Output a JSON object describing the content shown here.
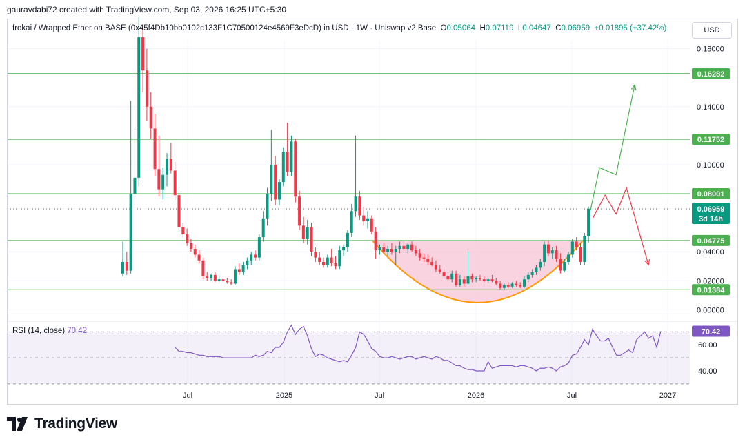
{
  "header": {
    "creator_line": "gauravdabi72 created with TradingView.com, Sep 03, 2026 16:25 UTC+5:30"
  },
  "legend": {
    "symbol_text": "frokai / Wrapped Ether on BASE (0x45f4Db10bb0102c133F1C70500124e4569F3eDcD) in USD · 1W · Uniswap v2 Base",
    "open_label": "O",
    "open": "0.05064",
    "high_label": "H",
    "high": "0.07119",
    "low_label": "L",
    "low": "0.04647",
    "close_label": "C",
    "close": "0.06959",
    "change": "+0.01895 (+37.42%)"
  },
  "currency_button": "USD",
  "rsi_panel": {
    "label": "RSI (14, close)",
    "value": "70.42"
  },
  "colors": {
    "up": "#089981",
    "down": "#f23645",
    "level_line": "#4caf50",
    "rsi_line": "#7e57c2",
    "cup_fill": "#f8bbd0",
    "cup_curve": "#ff9800",
    "up_arrow": "#4caf50",
    "down_arrow": "#f23645"
  },
  "chart_data": [
    {
      "type": "candlestick",
      "ylim": [
        -0.006,
        0.186
      ],
      "y_ticks": [
        0.0,
        0.02,
        0.04,
        0.1,
        0.14,
        0.18
      ],
      "y_tick_labels": [
        "0.00000",
        "0.02000",
        "0.04000",
        "0.10000",
        "0.14000",
        "0.18000"
      ],
      "x_ticks": [
        "Jul",
        "2025",
        "Jul",
        "2026",
        "Jul",
        "2027"
      ],
      "horizontal_levels": [
        {
          "value": 0.16282,
          "label": "0.16282"
        },
        {
          "value": 0.11752,
          "label": "0.11752"
        },
        {
          "value": 0.08001,
          "label": "0.08001"
        },
        {
          "value": 0.04775,
          "label": "0.04775"
        },
        {
          "value": 0.01384,
          "label": "0.01384"
        }
      ],
      "current_price": {
        "value": 0.06959,
        "label": "0.06959",
        "countdown": "3d 14h"
      },
      "candles": [
        {
          "o": 0.025,
          "h": 0.047,
          "l": 0.023,
          "c": 0.033
        },
        {
          "o": 0.033,
          "h": 0.04,
          "l": 0.024,
          "c": 0.027
        },
        {
          "o": 0.027,
          "h": 0.144,
          "l": 0.025,
          "c": 0.08
        },
        {
          "o": 0.08,
          "h": 0.125,
          "l": 0.07,
          "c": 0.091
        },
        {
          "o": 0.091,
          "h": 0.202,
          "l": 0.085,
          "c": 0.188
        },
        {
          "o": 0.188,
          "h": 0.195,
          "l": 0.15,
          "c": 0.165
        },
        {
          "o": 0.165,
          "h": 0.18,
          "l": 0.13,
          "c": 0.14
        },
        {
          "o": 0.14,
          "h": 0.15,
          "l": 0.118,
          "c": 0.125
        },
        {
          "o": 0.125,
          "h": 0.135,
          "l": 0.092,
          "c": 0.097
        },
        {
          "o": 0.097,
          "h": 0.12,
          "l": 0.078,
          "c": 0.083
        },
        {
          "o": 0.083,
          "h": 0.098,
          "l": 0.076,
          "c": 0.093
        },
        {
          "o": 0.093,
          "h": 0.108,
          "l": 0.085,
          "c": 0.104
        },
        {
          "o": 0.104,
          "h": 0.115,
          "l": 0.094,
          "c": 0.096
        },
        {
          "o": 0.096,
          "h": 0.102,
          "l": 0.076,
          "c": 0.079
        },
        {
          "o": 0.079,
          "h": 0.082,
          "l": 0.054,
          "c": 0.057
        },
        {
          "o": 0.057,
          "h": 0.06,
          "l": 0.05,
          "c": 0.052
        },
        {
          "o": 0.052,
          "h": 0.056,
          "l": 0.044,
          "c": 0.046
        },
        {
          "o": 0.046,
          "h": 0.049,
          "l": 0.04,
          "c": 0.042
        },
        {
          "o": 0.042,
          "h": 0.045,
          "l": 0.036,
          "c": 0.038
        },
        {
          "o": 0.038,
          "h": 0.041,
          "l": 0.032,
          "c": 0.034
        },
        {
          "o": 0.034,
          "h": 0.036,
          "l": 0.021,
          "c": 0.023
        },
        {
          "o": 0.023,
          "h": 0.026,
          "l": 0.02,
          "c": 0.022
        },
        {
          "o": 0.022,
          "h": 0.025,
          "l": 0.02,
          "c": 0.024
        },
        {
          "o": 0.024,
          "h": 0.026,
          "l": 0.019,
          "c": 0.02
        },
        {
          "o": 0.02,
          "h": 0.023,
          "l": 0.019,
          "c": 0.021
        },
        {
          "o": 0.021,
          "h": 0.023,
          "l": 0.019,
          "c": 0.02
        },
        {
          "o": 0.02,
          "h": 0.022,
          "l": 0.018,
          "c": 0.019
        },
        {
          "o": 0.019,
          "h": 0.021,
          "l": 0.017,
          "c": 0.018
        },
        {
          "o": 0.018,
          "h": 0.03,
          "l": 0.017,
          "c": 0.028
        },
        {
          "o": 0.028,
          "h": 0.032,
          "l": 0.024,
          "c": 0.026
        },
        {
          "o": 0.026,
          "h": 0.033,
          "l": 0.024,
          "c": 0.031
        },
        {
          "o": 0.031,
          "h": 0.036,
          "l": 0.028,
          "c": 0.034
        },
        {
          "o": 0.034,
          "h": 0.04,
          "l": 0.031,
          "c": 0.038
        },
        {
          "o": 0.038,
          "h": 0.041,
          "l": 0.034,
          "c": 0.036
        },
        {
          "o": 0.036,
          "h": 0.052,
          "l": 0.034,
          "c": 0.05
        },
        {
          "o": 0.05,
          "h": 0.068,
          "l": 0.047,
          "c": 0.063
        },
        {
          "o": 0.063,
          "h": 0.084,
          "l": 0.058,
          "c": 0.08
        },
        {
          "o": 0.08,
          "h": 0.124,
          "l": 0.075,
          "c": 0.1
        },
        {
          "o": 0.1,
          "h": 0.106,
          "l": 0.072,
          "c": 0.076
        },
        {
          "o": 0.076,
          "h": 0.09,
          "l": 0.072,
          "c": 0.088
        },
        {
          "o": 0.088,
          "h": 0.112,
          "l": 0.085,
          "c": 0.109
        },
        {
          "o": 0.109,
          "h": 0.129,
          "l": 0.092,
          "c": 0.095
        },
        {
          "o": 0.095,
          "h": 0.12,
          "l": 0.092,
          "c": 0.116
        },
        {
          "o": 0.116,
          "h": 0.118,
          "l": 0.074,
          "c": 0.078
        },
        {
          "o": 0.078,
          "h": 0.082,
          "l": 0.055,
          "c": 0.058
        },
        {
          "o": 0.058,
          "h": 0.064,
          "l": 0.046,
          "c": 0.049
        },
        {
          "o": 0.049,
          "h": 0.062,
          "l": 0.045,
          "c": 0.057
        },
        {
          "o": 0.057,
          "h": 0.06,
          "l": 0.037,
          "c": 0.04
        },
        {
          "o": 0.04,
          "h": 0.043,
          "l": 0.033,
          "c": 0.036
        },
        {
          "o": 0.036,
          "h": 0.04,
          "l": 0.031,
          "c": 0.033
        },
        {
          "o": 0.033,
          "h": 0.036,
          "l": 0.029,
          "c": 0.031
        },
        {
          "o": 0.031,
          "h": 0.038,
          "l": 0.029,
          "c": 0.036
        },
        {
          "o": 0.036,
          "h": 0.042,
          "l": 0.03,
          "c": 0.032
        },
        {
          "o": 0.032,
          "h": 0.037,
          "l": 0.028,
          "c": 0.03
        },
        {
          "o": 0.03,
          "h": 0.044,
          "l": 0.028,
          "c": 0.041
        },
        {
          "o": 0.041,
          "h": 0.045,
          "l": 0.037,
          "c": 0.043
        },
        {
          "o": 0.043,
          "h": 0.055,
          "l": 0.04,
          "c": 0.053
        },
        {
          "o": 0.053,
          "h": 0.073,
          "l": 0.05,
          "c": 0.068
        },
        {
          "o": 0.068,
          "h": 0.12,
          "l": 0.064,
          "c": 0.078
        },
        {
          "o": 0.078,
          "h": 0.082,
          "l": 0.062,
          "c": 0.065
        },
        {
          "o": 0.065,
          "h": 0.071,
          "l": 0.058,
          "c": 0.061
        },
        {
          "o": 0.061,
          "h": 0.068,
          "l": 0.056,
          "c": 0.063
        },
        {
          "o": 0.063,
          "h": 0.065,
          "l": 0.052,
          "c": 0.054
        },
        {
          "o": 0.054,
          "h": 0.057,
          "l": 0.035,
          "c": 0.041
        },
        {
          "o": 0.041,
          "h": 0.045,
          "l": 0.038,
          "c": 0.043
        },
        {
          "o": 0.043,
          "h": 0.046,
          "l": 0.039,
          "c": 0.04
        },
        {
          "o": 0.04,
          "h": 0.044,
          "l": 0.037,
          "c": 0.042
        },
        {
          "o": 0.042,
          "h": 0.046,
          "l": 0.038,
          "c": 0.04
        },
        {
          "o": 0.04,
          "h": 0.044,
          "l": 0.031,
          "c": 0.042
        },
        {
          "o": 0.042,
          "h": 0.047,
          "l": 0.039,
          "c": 0.044
        },
        {
          "o": 0.044,
          "h": 0.048,
          "l": 0.04,
          "c": 0.042
        },
        {
          "o": 0.042,
          "h": 0.046,
          "l": 0.039,
          "c": 0.045
        },
        {
          "o": 0.045,
          "h": 0.047,
          "l": 0.04,
          "c": 0.041
        },
        {
          "o": 0.041,
          "h": 0.044,
          "l": 0.037,
          "c": 0.039
        },
        {
          "o": 0.039,
          "h": 0.042,
          "l": 0.034,
          "c": 0.036
        },
        {
          "o": 0.036,
          "h": 0.039,
          "l": 0.033,
          "c": 0.035
        },
        {
          "o": 0.035,
          "h": 0.038,
          "l": 0.031,
          "c": 0.033
        },
        {
          "o": 0.033,
          "h": 0.036,
          "l": 0.03,
          "c": 0.031
        },
        {
          "o": 0.031,
          "h": 0.034,
          "l": 0.026,
          "c": 0.028
        },
        {
          "o": 0.028,
          "h": 0.031,
          "l": 0.025,
          "c": 0.026
        },
        {
          "o": 0.026,
          "h": 0.028,
          "l": 0.021,
          "c": 0.023
        },
        {
          "o": 0.023,
          "h": 0.026,
          "l": 0.02,
          "c": 0.021
        },
        {
          "o": 0.021,
          "h": 0.027,
          "l": 0.019,
          "c": 0.025
        },
        {
          "o": 0.025,
          "h": 0.027,
          "l": 0.016,
          "c": 0.017
        },
        {
          "o": 0.017,
          "h": 0.024,
          "l": 0.016,
          "c": 0.021
        },
        {
          "o": 0.021,
          "h": 0.023,
          "l": 0.016,
          "c": 0.018
        },
        {
          "o": 0.018,
          "h": 0.04,
          "l": 0.017,
          "c": 0.023
        },
        {
          "o": 0.023,
          "h": 0.025,
          "l": 0.019,
          "c": 0.021
        },
        {
          "o": 0.021,
          "h": 0.023,
          "l": 0.019,
          "c": 0.022
        },
        {
          "o": 0.022,
          "h": 0.024,
          "l": 0.02,
          "c": 0.021
        },
        {
          "o": 0.021,
          "h": 0.023,
          "l": 0.019,
          "c": 0.02
        },
        {
          "o": 0.02,
          "h": 0.022,
          "l": 0.018,
          "c": 0.021
        },
        {
          "o": 0.021,
          "h": 0.024,
          "l": 0.019,
          "c": 0.02
        },
        {
          "o": 0.02,
          "h": 0.022,
          "l": 0.017,
          "c": 0.018
        },
        {
          "o": 0.018,
          "h": 0.02,
          "l": 0.014,
          "c": 0.015
        },
        {
          "o": 0.015,
          "h": 0.018,
          "l": 0.014,
          "c": 0.017
        },
        {
          "o": 0.017,
          "h": 0.019,
          "l": 0.015,
          "c": 0.016
        },
        {
          "o": 0.016,
          "h": 0.019,
          "l": 0.015,
          "c": 0.018
        },
        {
          "o": 0.018,
          "h": 0.02,
          "l": 0.016,
          "c": 0.017
        },
        {
          "o": 0.017,
          "h": 0.019,
          "l": 0.015,
          "c": 0.016
        },
        {
          "o": 0.016,
          "h": 0.023,
          "l": 0.015,
          "c": 0.021
        },
        {
          "o": 0.021,
          "h": 0.026,
          "l": 0.019,
          "c": 0.024
        },
        {
          "o": 0.024,
          "h": 0.028,
          "l": 0.022,
          "c": 0.026
        },
        {
          "o": 0.026,
          "h": 0.031,
          "l": 0.024,
          "c": 0.029
        },
        {
          "o": 0.029,
          "h": 0.035,
          "l": 0.027,
          "c": 0.033
        },
        {
          "o": 0.033,
          "h": 0.047,
          "l": 0.03,
          "c": 0.045
        },
        {
          "o": 0.045,
          "h": 0.048,
          "l": 0.037,
          "c": 0.039
        },
        {
          "o": 0.039,
          "h": 0.043,
          "l": 0.035,
          "c": 0.041
        },
        {
          "o": 0.041,
          "h": 0.044,
          "l": 0.033,
          "c": 0.035
        },
        {
          "o": 0.035,
          "h": 0.039,
          "l": 0.025,
          "c": 0.027
        },
        {
          "o": 0.027,
          "h": 0.035,
          "l": 0.026,
          "c": 0.033
        },
        {
          "o": 0.033,
          "h": 0.04,
          "l": 0.031,
          "c": 0.038
        },
        {
          "o": 0.038,
          "h": 0.049,
          "l": 0.036,
          "c": 0.047
        },
        {
          "o": 0.047,
          "h": 0.05,
          "l": 0.041,
          "c": 0.043
        },
        {
          "o": 0.043,
          "h": 0.046,
          "l": 0.031,
          "c": 0.033
        },
        {
          "o": 0.033,
          "h": 0.053,
          "l": 0.031,
          "c": 0.051
        },
        {
          "o": 0.05064,
          "h": 0.07119,
          "l": 0.04647,
          "c": 0.06959
        }
      ],
      "cup_pattern": {
        "rim_value": 0.04775,
        "bottom_value": 0.005
      },
      "projection_paths": [
        {
          "direction": "up",
          "points": [
            0.069,
            0.098,
            0.093,
            0.155
          ]
        },
        {
          "direction": "down",
          "points": [
            0.063,
            0.079,
            0.066,
            0.084,
            0.031
          ]
        }
      ]
    },
    {
      "type": "line",
      "name": "RSI (14, close)",
      "ylim": [
        31,
        76
      ],
      "y_ticks": [
        40.0,
        60.0
      ],
      "y_tick_labels": [
        "40.00",
        "60.00"
      ],
      "bands": [
        30,
        50,
        70
      ],
      "current_value": {
        "value": 70.42,
        "label": "70.42"
      },
      "values": [
        58,
        55,
        55,
        54,
        54,
        53,
        52,
        52,
        51,
        51,
        51,
        51,
        50,
        50,
        50,
        50,
        50,
        50,
        50,
        50,
        52,
        51,
        52,
        55,
        54,
        58,
        58,
        62,
        70,
        75,
        68,
        72,
        74,
        67,
        57,
        51,
        53,
        52,
        50,
        49,
        48,
        47,
        48,
        47,
        52,
        58,
        70,
        68,
        63,
        57,
        55,
        51,
        50,
        50,
        51,
        50,
        49,
        50,
        51,
        51,
        49,
        50,
        51,
        50,
        49,
        51,
        50,
        48,
        48,
        46,
        44,
        44,
        42,
        41,
        41,
        40,
        40,
        40,
        47,
        42,
        43,
        44,
        44,
        44,
        44,
        43,
        44,
        44,
        43,
        42,
        40,
        42,
        42,
        43,
        42,
        40,
        43,
        44,
        46,
        52,
        53,
        58,
        64,
        60,
        72,
        67,
        63,
        63,
        65,
        58,
        52,
        52,
        54,
        56,
        54,
        64,
        67,
        70,
        65,
        67,
        58,
        70.42
      ]
    }
  ]
}
